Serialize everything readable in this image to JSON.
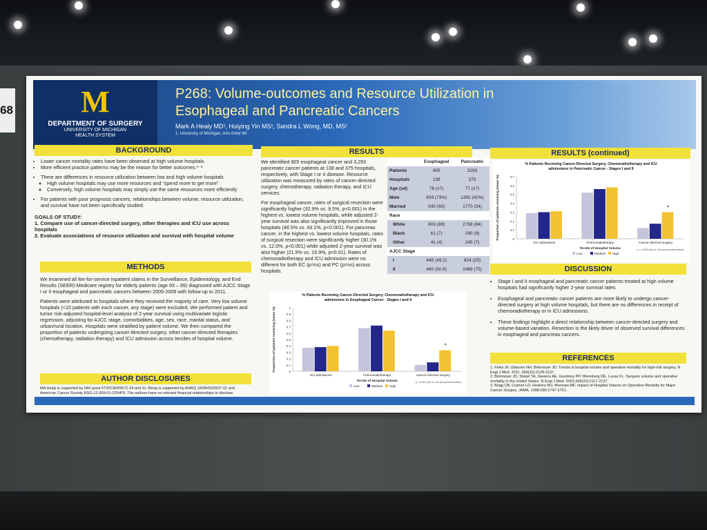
{
  "booth_tag": "68",
  "colors": {
    "low": "#c4c4dc",
    "medium": "#23268a",
    "high": "#f2c232",
    "banner": "#1b3f78",
    "header": "#f2e13a"
  },
  "logo": {
    "letter": "M",
    "dept": "DEPARTMENT OF SURGERY",
    "sub1": "UNIVERSITY OF MICHIGAN",
    "sub2": "HEALTH SYSTEM"
  },
  "title": "P268: Volume-outcomes and Resource Utilization in Esophageal and Pancreatic Cancers",
  "authors": "Mark A Healy MD¹, Huiying Yin MS¹, Sandra L Wong, MD, MS¹",
  "affiliation": "1. University of Michigan, Ann Arbor MI",
  "background": {
    "header": "BACKGROUND",
    "b1": "Lower cancer mortality rates have been observed at high volume hospitals.",
    "b2": "More efficient practice patterns may be the reason for better outcomes.¹⁻³",
    "b3": "There are differences in resource utilization between low and high volume hospitals",
    "b3a": "High volume hospitals may use more resources and “spend more to get more”",
    "b3b": "Conversely, high volume hospitals may simply use the same resources more efficiently",
    "b4": "For patients with poor prognosis cancers, relationships between volume, resource utilization, and survival have not been specifically studied.",
    "goals_title": "GOALS OF STUDY:",
    "goal1": "1. Compare use of cancer-directed surgery, other therapies and ICU use across hospitals",
    "goal2": "2. Evaluate associations of resource utilization and survival with hospital volume"
  },
  "methods": {
    "header": "METHODS",
    "p1": "We examined all fee-for-service inpatient claims in the Surveillance, Epidemiology, and End Results (SEER)-Medicare registry for elderly patients (age 65 – 99) diagnosed with AJCC Stage I or II esophageal and pancreatic cancers between 2005-2009 with follow-up to 2011.",
    "p2": "Patients were attributed to hospitals where they received the majority of care. Very low volume hospitals (<10 patients with each cancer, any stage) were excluded. We performed patient and tumor risk-adjusted hospital-level analysis of 2-year survival using multivariate logistic regression, adjusting for AJCC stage, comorbidities, age, sex, race, marital status, and urban/rural location. Hospitals were stratified by patient volume. We then compared the proportion of patients undergoing cancer-directed surgery, other cancer-directed therapies (chemotherapy, radiation therapy) and ICU admission across terciles of hospital volume."
  },
  "disclosures": {
    "header": "AUTHOR DISCLOSURES",
    "text": "MA Healy is supported by NIH grant 5T32CA009672-24 and SL Wong is supported by AHRQ 1K08HS20937-01 and American Cancer Society RSG-12-269-01-CPHPS. The authors have no relevant financial relationships to disclose."
  },
  "results": {
    "header": "RESULTS",
    "p1": "We identified 905 esophageal cancer and 3,293 pancreatic cancer patients at 138 and 375 hospitals, respectively, with Stage I or II disease. Resource utilization was measured by rates of cancer-directed surgery, chemotherapy, radiation therapy, and ICU services.",
    "p2": "For esophageal cancer, rates of surgical resection were significantly higher (32.9% vs. 9.5%, p<0.001) in the highest vs. lowest volume hospitals, while adjusted 2-year survival was also significantly improved in those hospitals (48.5% vs. 43.1%, p<0.001). For pancreas cancer, in the highest vs. lowest volume hospitals, rates of surgical resection were significantly higher (30.1% vs. 12.0%, p<0.001) while adjusted 2-year survival was also higher (21.5% vs. 19.9%, p=0.01). Rates of chemoradiotherapy and ICU admission were no different for both EC (p=ns) and PC (p=ns) across hospitals.",
    "table": {
      "col1": "Esophageal",
      "col2": "Pancreatic",
      "rows": [
        {
          "label": "Patients",
          "a": "905",
          "b": "3293"
        },
        {
          "label": "Hospitals",
          "a": "138",
          "b": "375"
        },
        {
          "label": "Age (sd)",
          "a": "76 (±7)",
          "b": "77 (±7)"
        },
        {
          "label": "Male",
          "a": "659 (73%)",
          "b": "1392 (42%)"
        },
        {
          "label": "Married",
          "a": "540 (60)",
          "b": "1770 (54)"
        }
      ],
      "race_label": "Race",
      "race_rows": [
        {
          "label": "White",
          "a": "803 (89)",
          "b": "2758 (84)"
        },
        {
          "label": "Black",
          "a": "61 (7)",
          "b": "290 (9)"
        },
        {
          "label": "Other",
          "a": "41 (4)",
          "b": "245 (7)"
        }
      ],
      "stage_label": "AJCC Stage",
      "stage_rows": [
        {
          "label": "I",
          "a": "445 (49.2)",
          "b": "824 (25)"
        },
        {
          "label": "II",
          "a": "460 (50.8)",
          "b": "2469 (75)"
        }
      ]
    }
  },
  "results_continued": {
    "header": "RESULTS (continued)"
  },
  "discussion": {
    "header": "DISCUSSION",
    "b1": "Stage I and II esophageal and pancreatic cancer patients treated at high volume hospitals had significantly higher 2-year survival rates.",
    "b2": "Esophageal and pancreatic cancer patients are more likely to undergo cancer-directed surgery at high volume hospitals, but there are no differences in receipt of chemoradiotherapy or in ICU admissions.",
    "b3": "These findings highlight a direct relationship between cancer-directed surgery and volume-based variation. Resection is the likely driver of observed survival differences in esophageal and pancreas cancers."
  },
  "references": {
    "header": "REFERENCES",
    "r1": "1. Finks JF, Osborne NH, Birkmeyer JD. Trends in hospital volume and operative mortality for high-risk surgery. N Engl J Med. 2011; 364(22):2128-2137.",
    "r2": "2. Birkmeyer JD, Stukel TA, Siewers AE, Goodney PP, Wennberg DE, Lucas FL. Surgeon volume and operative mortality in the United States. N Engl J Med. 2003;349(22):2117-2127.",
    "r3": "3. Begg CB, Cramer LD, Hoskins WJ, Brennan MF. Impact of Hospital Volume on Operative Mortality for Major Cancer Surgery. JAMA. 1998;280:1747-1751."
  },
  "chart_data": [
    {
      "type": "bar",
      "title": "% Patients Receiving Cancer-Directed Surgery, Chemoradiotherapy and ICU admissions in Esophageal Cancer - Stages I and II",
      "ylabel": "Proportion of patients receiving (mean %)",
      "xlabel": "Tercile of Hospital Volume",
      "ylim": [
        0,
        1
      ],
      "yticks": [
        "0",
        "0.1",
        "0.2",
        "0.3",
        "0.4",
        "0.5",
        "0.6",
        "0.7",
        "0.8",
        "0.9",
        "1"
      ],
      "categories": [
        "ICU admissions",
        "Chemoradiotherapy",
        "Cancer-directed surgery"
      ],
      "series": [
        {
          "name": "Low",
          "values": [
            0.37,
            0.68,
            0.1
          ]
        },
        {
          "name": "Medium",
          "values": [
            0.38,
            0.72,
            0.14
          ]
        },
        {
          "name": "High",
          "values": [
            0.4,
            0.64,
            0.33
          ]
        }
      ],
      "annotation": "*",
      "footnote": "* p < 0.001 (1st vs. 3rd and across terciles)"
    },
    {
      "type": "bar",
      "title": "% Patients Receiving Cancer-Directed Surgery, Chemoradiotherapy and ICU admissions in Pancreatic Cancer - Stages I and II",
      "ylabel": "Proportion of patients receiving (mean %)",
      "xlabel": "Tercile of Hospital Volume",
      "ylim": [
        0,
        0.7
      ],
      "yticks": [
        "0",
        "0.1",
        "0.2",
        "0.3",
        "0.4",
        "0.5",
        "0.6",
        "0.7"
      ],
      "categories": [
        "ICU admissions",
        "Chemoradiotherapy",
        "Cancer-directed surgery"
      ],
      "series": [
        {
          "name": "Low",
          "values": [
            0.29,
            0.52,
            0.12
          ]
        },
        {
          "name": "Medium",
          "values": [
            0.3,
            0.56,
            0.17
          ]
        },
        {
          "name": "High",
          "values": [
            0.31,
            0.58,
            0.3
          ]
        }
      ],
      "annotation": "*",
      "footnote": "* p < 0.001 (1st vs. 3rd and across terciles)"
    }
  ]
}
